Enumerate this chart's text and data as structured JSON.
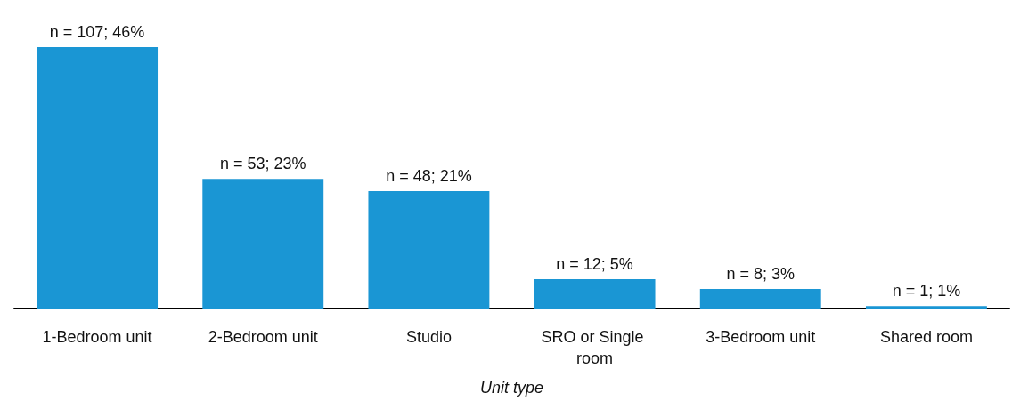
{
  "chart_data": {
    "type": "bar",
    "xlabel": "Unit type",
    "categories": [
      "1-Bedroom unit",
      "2-Bedroom unit",
      "Studio",
      "SRO or Single room",
      "3-Bedroom unit",
      "Shared room"
    ],
    "values": [
      107,
      53,
      48,
      12,
      8,
      1
    ],
    "value_labels": [
      "n = 107; 46%",
      "n = 53; 23%",
      "n = 48; 21%",
      "n = 12; 5%",
      "n = 8; 3%",
      "n = 1; 1%"
    ],
    "color": "#1a96d4"
  }
}
